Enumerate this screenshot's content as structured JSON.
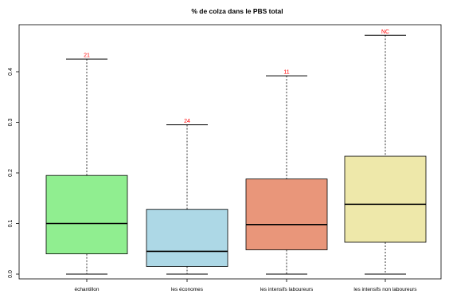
{
  "chart_data": {
    "type": "boxplot",
    "title": "% de colza dans le PBS total",
    "xlabel": "",
    "ylabel": "",
    "ylim": [
      -0.005,
      0.485
    ],
    "yticks": [
      0.0,
      0.1,
      0.2,
      0.3,
      0.4
    ],
    "ytick_labels": [
      "0.0",
      "0.1",
      "0.2",
      "0.3",
      "0.4"
    ],
    "grid": false,
    "categories": [
      "échantillon",
      "les économes",
      "les intensifs laboureurs",
      "les intensifs non laboureurs"
    ],
    "boxes": [
      {
        "whisker_low": 0.0,
        "q1": 0.04,
        "median": 0.1,
        "q3": 0.195,
        "whisker_high": 0.425,
        "annotation": "21",
        "color": "#90EE90"
      },
      {
        "whisker_low": 0.0,
        "q1": 0.015,
        "median": 0.045,
        "q3": 0.128,
        "whisker_high": 0.295,
        "annotation": "24",
        "color": "#ADD8E6"
      },
      {
        "whisker_low": 0.0,
        "q1": 0.048,
        "median": 0.098,
        "q3": 0.188,
        "whisker_high": 0.392,
        "annotation": "11",
        "color": "#E9967A"
      },
      {
        "whisker_low": 0.0,
        "q1": 0.063,
        "median": 0.138,
        "q3": 0.233,
        "whisker_high": 0.472,
        "annotation": "NC",
        "color": "#EEE8AA"
      }
    ],
    "annotation_color": "#FF0000"
  }
}
